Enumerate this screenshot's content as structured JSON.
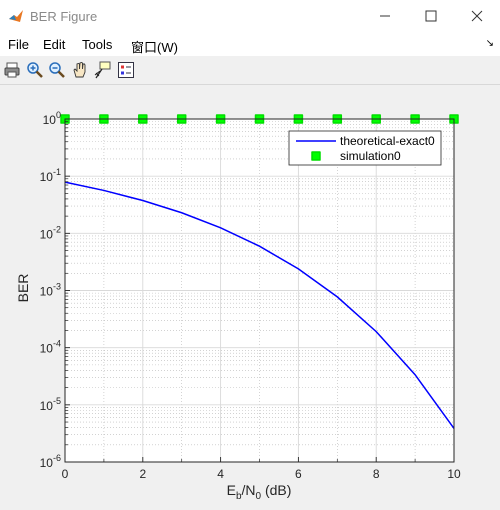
{
  "window": {
    "title": "BER Figure",
    "controls": {
      "minimize": "minimize",
      "maximize": "maximize",
      "close": "close"
    }
  },
  "menu": [
    "File",
    "Edit",
    "Tools",
    "窗口(W)"
  ],
  "toolbar": {
    "icons": [
      "print-icon",
      "zoom-in-icon",
      "zoom-out-icon",
      "pan-icon",
      "data-cursor-icon",
      "legend-icon"
    ]
  },
  "chart_data": {
    "type": "line",
    "title": "",
    "xlabel_main": "E",
    "xlabel_sub1": "b",
    "xlabel_mid": "/N",
    "xlabel_sub2": "0",
    "xlabel_tail": " (dB)",
    "ylabel": "BER",
    "xlim": [
      0,
      10
    ],
    "ylim": [
      1e-06,
      1
    ],
    "yscale": "log",
    "grid": true,
    "minor_grid": true,
    "x_ticks": [
      "0",
      "2",
      "4",
      "6",
      "8",
      "10"
    ],
    "y_ticks": [
      {
        "base": "10",
        "exp": "0"
      },
      {
        "base": "10",
        "exp": "-1"
      },
      {
        "base": "10",
        "exp": "-2"
      },
      {
        "base": "10",
        "exp": "-3"
      },
      {
        "base": "10",
        "exp": "-4"
      },
      {
        "base": "10",
        "exp": "-5"
      },
      {
        "base": "10",
        "exp": "-6"
      }
    ],
    "legend_position": "top-right",
    "series": [
      {
        "name": "theoretical-exact0",
        "style": "line",
        "color": "#0000ff",
        "x": [
          0,
          1,
          2,
          3,
          4,
          5,
          6,
          7,
          8,
          9,
          10
        ],
        "y": [
          0.0786,
          0.0563,
          0.0375,
          0.0229,
          0.0125,
          0.00595,
          0.00239,
          0.000773,
          0.000191,
          3.36e-05,
          3.87e-06
        ]
      },
      {
        "name": "simulation0",
        "style": "marker",
        "color": "#00ff00",
        "x": [
          0,
          1,
          2,
          3,
          4,
          5,
          6,
          7,
          8,
          9,
          10
        ],
        "y": [
          1,
          1,
          1,
          1,
          1,
          1,
          1,
          1,
          1,
          1,
          1
        ]
      }
    ]
  }
}
